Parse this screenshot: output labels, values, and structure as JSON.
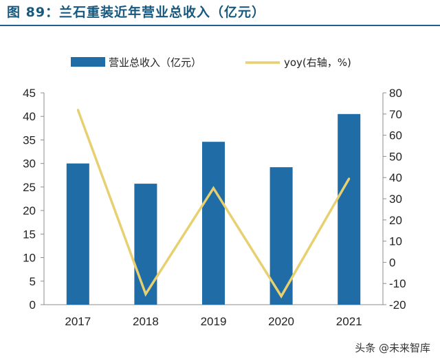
{
  "figure_title": "图 89：兰石重装近年营业总收入（亿元）",
  "watermark": "头条 @未来智库",
  "colors": {
    "bar": "#1f6ca6",
    "line": "#e8cf6f",
    "title": "#17587e"
  },
  "chart_data": {
    "type": "bar+line",
    "categories": [
      "2017",
      "2018",
      "2019",
      "2020",
      "2021"
    ],
    "series": [
      {
        "name": "营业总收入（亿元）",
        "type": "bar",
        "axis": "left",
        "values": [
          30.0,
          25.7,
          34.6,
          29.2,
          40.5
        ]
      },
      {
        "name": "yoy(右轴，%)",
        "type": "line",
        "axis": "right",
        "values": [
          72,
          -15,
          35,
          -16,
          39.5
        ]
      }
    ],
    "y_left": {
      "min": 0,
      "max": 45,
      "ticks": [
        0,
        5,
        10,
        15,
        20,
        25,
        30,
        35,
        40,
        45
      ]
    },
    "y_right": {
      "min": -20,
      "max": 80,
      "ticks": [
        -20,
        -10,
        0,
        10,
        20,
        30,
        40,
        50,
        60,
        70,
        80
      ]
    },
    "legend_position": "top",
    "grid": false
  }
}
